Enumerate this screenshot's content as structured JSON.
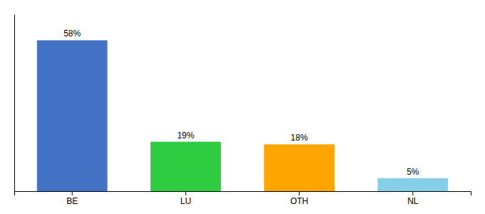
{
  "chart_data": {
    "type": "bar",
    "categories": [
      "BE",
      "LU",
      "OTH",
      "NL"
    ],
    "values": [
      58,
      19,
      18,
      5
    ],
    "value_labels": [
      "58%",
      "19%",
      "18%",
      "5%"
    ],
    "colors": [
      "#4472C4",
      "#2ECC40",
      "#FFA500",
      "#87CEEB"
    ],
    "ylim": [
      0,
      68
    ],
    "data_labels": true,
    "tick_labels": "x"
  }
}
